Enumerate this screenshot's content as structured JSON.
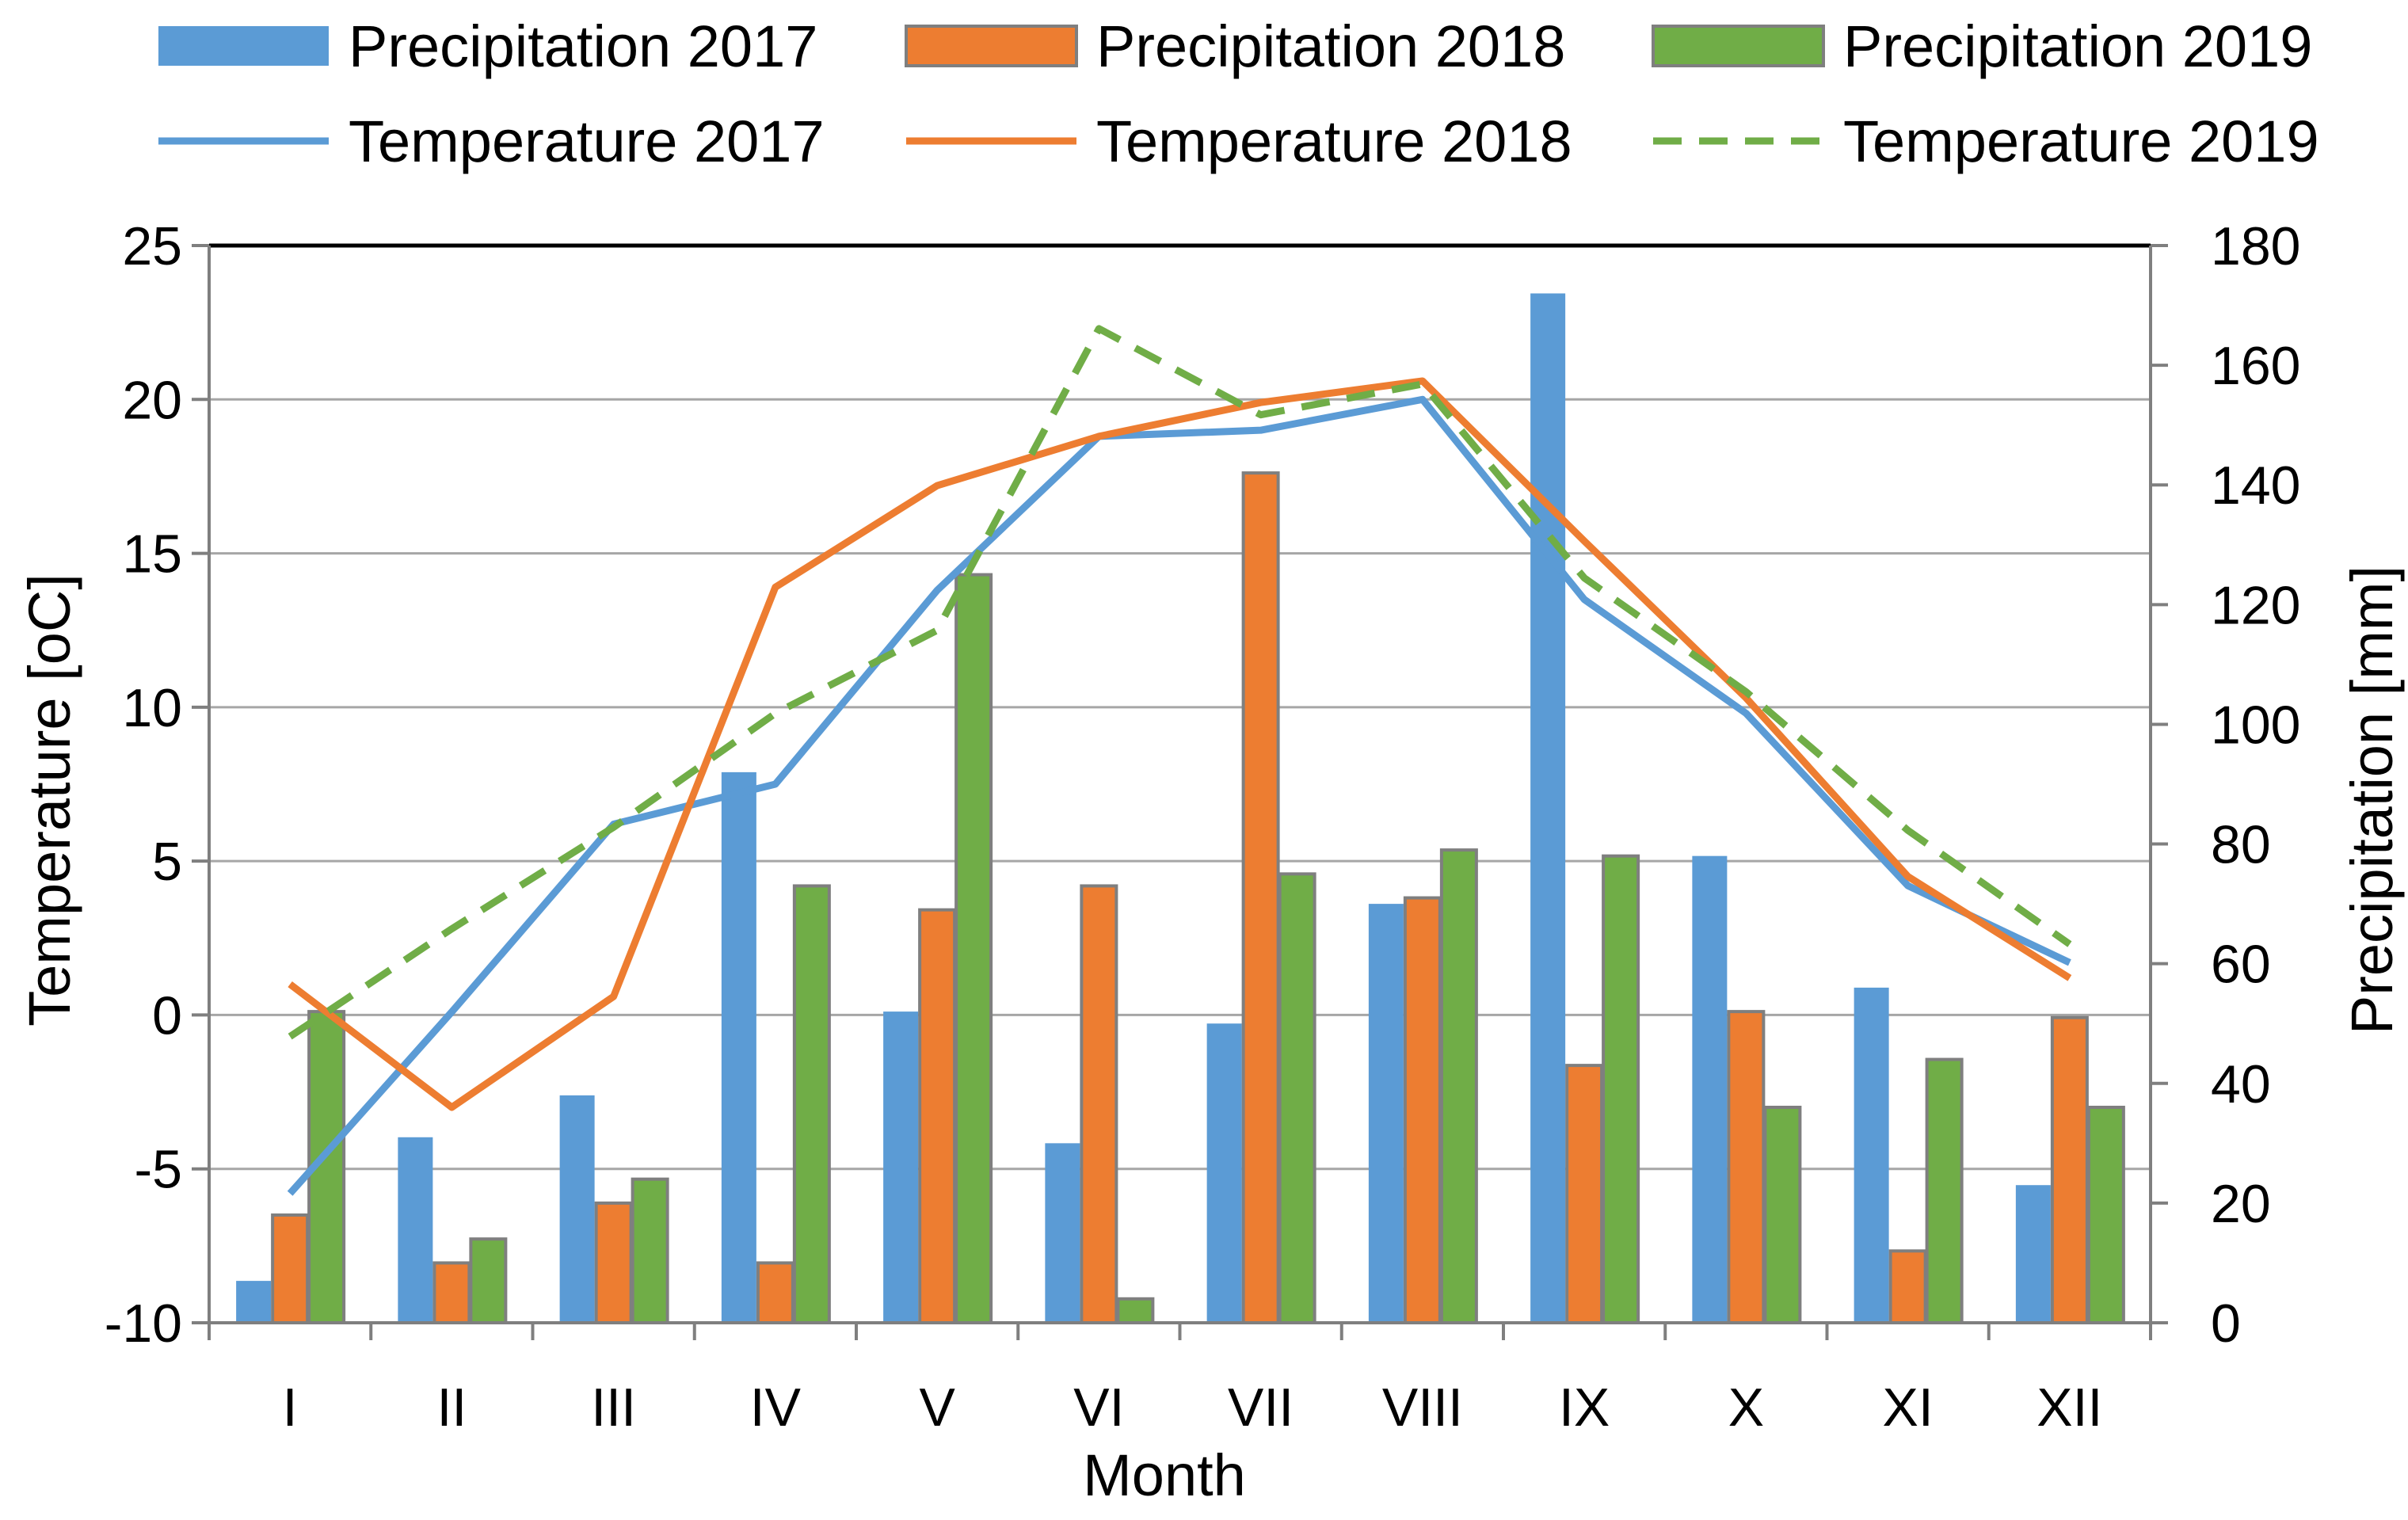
{
  "chart_data": {
    "type": "bar",
    "categories": [
      "I",
      "II",
      "III",
      "IV",
      "V",
      "VI",
      "VII",
      "VIII",
      "IX",
      "X",
      "XI",
      "XII"
    ],
    "xlabel": "Month",
    "ylabel_left": "Temperature [oC]",
    "ylabel_right": "Precipitation [mm]",
    "ylim_left": [
      -10,
      25
    ],
    "ylim_right": [
      0,
      180
    ],
    "yticks_left": [
      "25",
      "20",
      "15",
      "10",
      "5",
      "0",
      "-5",
      "-10"
    ],
    "yticks_right": [
      "180",
      "160",
      "140",
      "120",
      "100",
      "80",
      "60",
      "40",
      "20",
      "0"
    ],
    "grid": true,
    "legend_position": "top",
    "bar_series": [
      {
        "name": "Precipitation 2017",
        "axis": "right",
        "color": "#5b9bd5",
        "values": [
          7,
          31,
          38,
          92,
          52,
          30,
          50,
          70,
          172,
          78,
          56,
          23
        ]
      },
      {
        "name": "Precipitation 2018",
        "axis": "right",
        "color": "#ed7d31",
        "values": [
          18,
          10,
          20,
          10,
          69,
          73,
          142,
          71,
          43,
          52,
          12,
          51
        ]
      },
      {
        "name": "Precipitation 2019",
        "axis": "right",
        "color": "#70ad47",
        "values": [
          52,
          14,
          24,
          73,
          125,
          4,
          75,
          79,
          78,
          36,
          44,
          36
        ]
      }
    ],
    "line_series": [
      {
        "name": "Temperature 2017",
        "axis": "left",
        "color": "#5b9bd5",
        "dashed": false,
        "values": [
          -5.8,
          0.1,
          6.2,
          7.5,
          13.8,
          18.8,
          19.0,
          20.0,
          13.5,
          9.8,
          4.2,
          1.7
        ]
      },
      {
        "name": "Temperature 2018",
        "axis": "left",
        "color": "#ed7d31",
        "dashed": false,
        "values": [
          1.0,
          -3.0,
          0.6,
          13.9,
          17.2,
          18.8,
          19.9,
          20.6,
          15.4,
          10.3,
          4.5,
          1.2
        ]
      },
      {
        "name": "Temperature 2019",
        "axis": "left",
        "color": "#70ad47",
        "dashed": true,
        "values": [
          -0.7,
          2.8,
          6.1,
          9.8,
          12.5,
          22.3,
          19.5,
          20.5,
          14.2,
          10.5,
          6.0,
          2.3
        ]
      }
    ]
  }
}
